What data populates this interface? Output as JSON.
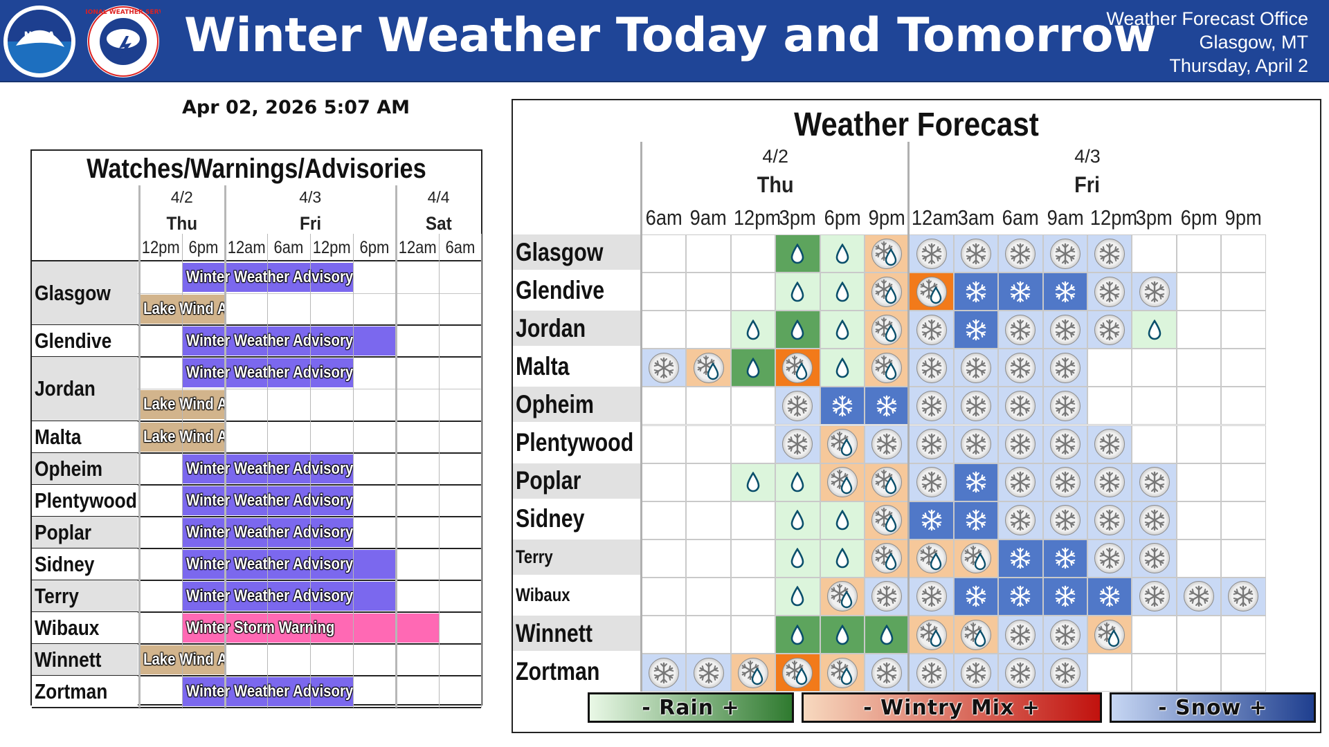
{
  "banner": {
    "title": "Winter Weather Today and Tomorrow",
    "office_line1": "Weather Forecast Office",
    "office_line2": "Glasgow, MT",
    "office_line3": "Thursday, April 2",
    "noaa_logo_text": "NOAA",
    "nws_logo_text": "NATIONAL WEATHER SERVICE",
    "colors": {
      "background": "#1f4597",
      "text": "#ffffff"
    }
  },
  "timestamp": "Apr 02, 2026 5:07 AM",
  "wwa": {
    "title": "Watches/Warnings/Advisories",
    "days": [
      {
        "date": "4/2",
        "day": "Thu"
      },
      {
        "date": "4/3",
        "day": "Fri"
      },
      {
        "date": "4/4",
        "day": "Sat"
      }
    ],
    "times": [
      "12pm",
      "6pm",
      "12am",
      "6am",
      "12pm",
      "6pm",
      "12am",
      "6am"
    ],
    "rows": [
      {
        "city": "Glasgow",
        "bands": [
          {
            "label": "Winter Weather Advisory",
            "type": "purple",
            "start": 1,
            "end": 5
          },
          {
            "label": "Lake Wind Advisory",
            "type": "tan",
            "start": 0,
            "end": 2
          }
        ]
      },
      {
        "city": "Glendive",
        "bands": [
          {
            "label": "Winter Weather Advisory",
            "type": "purple",
            "start": 1,
            "end": 6
          }
        ]
      },
      {
        "city": "Jordan",
        "bands": [
          {
            "label": "Winter Weather Advisory",
            "type": "purple",
            "start": 1,
            "end": 5
          },
          {
            "label": "Lake Wind Advisory",
            "type": "tan",
            "start": 0,
            "end": 2
          }
        ]
      },
      {
        "city": "Malta",
        "bands": [
          {
            "label": "Lake Wind Advisory",
            "type": "tan",
            "start": 0,
            "end": 2
          }
        ]
      },
      {
        "city": "Opheim",
        "bands": [
          {
            "label": "Winter Weather Advisory",
            "type": "purple",
            "start": 1,
            "end": 5
          }
        ]
      },
      {
        "city": "Plentywood",
        "bands": [
          {
            "label": "Winter Weather Advisory",
            "type": "purple",
            "start": 1,
            "end": 5
          }
        ]
      },
      {
        "city": "Poplar",
        "bands": [
          {
            "label": "Winter Weather Advisory",
            "type": "purple",
            "start": 1,
            "end": 5
          }
        ]
      },
      {
        "city": "Sidney",
        "bands": [
          {
            "label": "Winter Weather Advisory",
            "type": "purple",
            "start": 1,
            "end": 6
          }
        ]
      },
      {
        "city": "Terry",
        "bands": [
          {
            "label": "Winter Weather Advisory",
            "type": "purple",
            "start": 1,
            "end": 6
          }
        ]
      },
      {
        "city": "Wibaux",
        "bands": [
          {
            "label": "Winter Storm Warning",
            "type": "pink",
            "start": 1,
            "end": 7
          }
        ]
      },
      {
        "city": "Winnett",
        "bands": [
          {
            "label": "Lake Wind Advisory",
            "type": "tan",
            "start": 0,
            "end": 2
          }
        ]
      },
      {
        "city": "Zortman",
        "bands": [
          {
            "label": "Winter Weather Advisory",
            "type": "purple",
            "start": 1,
            "end": 5
          }
        ]
      }
    ],
    "colors": {
      "purple": "#7b68ee",
      "tan": "#d2b48c",
      "pink": "#ff69b4"
    }
  },
  "forecast": {
    "title": "Weather Forecast",
    "days": [
      {
        "date": "4/2",
        "day": "Thu"
      },
      {
        "date": "4/3",
        "day": "Fri"
      }
    ],
    "times": [
      "6am",
      "9am",
      "12pm",
      "3pm",
      "6pm",
      "9pm",
      "12am",
      "3am",
      "6am",
      "9am",
      "12pm",
      "3pm",
      "6pm",
      "9pm"
    ],
    "legend": [
      {
        "label": "- Rain +",
        "type": "rain"
      },
      {
        "label": "- Wintry Mix +",
        "type": "mix"
      },
      {
        "label": "- Snow +",
        "type": "snow"
      }
    ],
    "codes_legend": {
      "0": "empty",
      "r1": "light rain",
      "r2": "moderate rain",
      "m1": "light wintry mix",
      "m2": "heavy wintry mix",
      "s1": "light snow",
      "s2": "moderate snow"
    },
    "rows": [
      {
        "city": "Glasgow",
        "small": false,
        "cells": [
          "0",
          "0",
          "0",
          "r2",
          "r1",
          "m1",
          "s1",
          "s1",
          "s1",
          "s1",
          "s1",
          "0",
          "0",
          "0"
        ]
      },
      {
        "city": "Glendive",
        "small": false,
        "cells": [
          "0",
          "0",
          "0",
          "r1",
          "r1",
          "m1",
          "m2",
          "s2",
          "s2",
          "s2",
          "s1",
          "s1",
          "0",
          "0"
        ]
      },
      {
        "city": "Jordan",
        "small": false,
        "cells": [
          "0",
          "0",
          "r1",
          "r2",
          "r1",
          "m1",
          "s1",
          "s2",
          "s1",
          "s1",
          "s1",
          "r1",
          "0",
          "0"
        ]
      },
      {
        "city": "Malta",
        "small": false,
        "cells": [
          "s1",
          "m1",
          "r2",
          "m2",
          "r1",
          "m1",
          "s1",
          "s1",
          "s1",
          "s1",
          "0",
          "0",
          "0",
          "0"
        ]
      },
      {
        "city": "Opheim",
        "small": false,
        "cells": [
          "0",
          "0",
          "0",
          "s1",
          "s2",
          "s2",
          "s1",
          "s1",
          "s1",
          "s1",
          "0",
          "0",
          "0",
          "0"
        ]
      },
      {
        "city": "Plentywood",
        "small": false,
        "cells": [
          "0",
          "0",
          "0",
          "s1",
          "m1",
          "s1",
          "s1",
          "s1",
          "s1",
          "s1",
          "s1",
          "0",
          "0",
          "0"
        ]
      },
      {
        "city": "Poplar",
        "small": false,
        "cells": [
          "0",
          "0",
          "r1",
          "r1",
          "m1",
          "m1",
          "s1",
          "s2",
          "s1",
          "s1",
          "s1",
          "s1",
          "0",
          "0"
        ]
      },
      {
        "city": "Sidney",
        "small": false,
        "cells": [
          "0",
          "0",
          "0",
          "r1",
          "r1",
          "m1",
          "s2",
          "s2",
          "s1",
          "s1",
          "s1",
          "s1",
          "0",
          "0"
        ]
      },
      {
        "city": "Terry",
        "small": true,
        "cells": [
          "0",
          "0",
          "0",
          "r1",
          "r1",
          "m1",
          "m1",
          "m1",
          "s2",
          "s2",
          "s1",
          "s1",
          "0",
          "0"
        ]
      },
      {
        "city": "Wibaux",
        "small": true,
        "cells": [
          "0",
          "0",
          "0",
          "r1",
          "m1",
          "s1",
          "s1",
          "s2",
          "s2",
          "s2",
          "s2",
          "s1",
          "s1",
          "s1"
        ]
      },
      {
        "city": "Winnett",
        "small": false,
        "cells": [
          "0",
          "0",
          "0",
          "r2",
          "r2",
          "r2",
          "m1",
          "m1",
          "s1",
          "s1",
          "m1",
          "0",
          "0",
          "0"
        ]
      },
      {
        "city": "Zortman",
        "small": false,
        "cells": [
          "s1",
          "s1",
          "m1",
          "m2",
          "m1",
          "s1",
          "s1",
          "s1",
          "s1",
          "s1",
          "0",
          "0",
          "0",
          "0"
        ]
      }
    ],
    "colors": {
      "r1": "#dcf5dc",
      "r2": "#5da45d",
      "m1": "#f6c89a",
      "m2": "#f27a1a",
      "s1": "#c9d9f5",
      "s2": "#5078c8",
      "legend_rain_start": "#e9f8e6",
      "legend_rain_end": "#2f7a2f",
      "legend_mix_start": "#f7d9bf",
      "legend_mix_end": "#c1120e",
      "legend_snow_start": "#c6d6f3",
      "legend_snow_end": "#1f3f8f"
    }
  }
}
